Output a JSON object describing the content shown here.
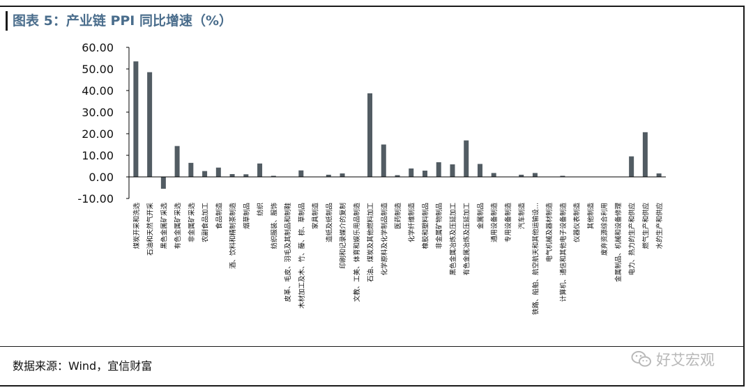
{
  "title": "图表 5：产业链 PPI 同比增速（%）",
  "source": "数据来源：Wind，宜信财富",
  "watermark": {
    "text": "好艾宏观",
    "icon": "wechat-icon"
  },
  "colors": {
    "bar": "#525c63",
    "title": "#4a6d8c",
    "axis": "#000000",
    "watermark": "#b8b8b8"
  },
  "chart_data": {
    "type": "bar",
    "title": "图表 5：产业链 PPI 同比增速（%）",
    "xlabel": "",
    "ylabel": "",
    "ylim": [
      -10,
      60
    ],
    "yticks": [
      -10,
      0,
      10,
      20,
      30,
      40,
      50,
      60
    ],
    "ytick_labels": [
      "-10.00",
      "0.00",
      "10.00",
      "20.00",
      "30.00",
      "40.00",
      "50.00",
      "60.00"
    ],
    "grid": false,
    "legend": "none",
    "categories": [
      "煤炭开采和洗选",
      "石油和天然气开采",
      "黑色金属矿采选",
      "有色金属矿采选",
      "非金属矿采选",
      "农副食品加工",
      "食品制造",
      "酒、饮料和精制茶制造",
      "烟草制品",
      "纺织",
      "纺织服装、服饰",
      "皮革、毛皮、羽毛及其制品和制鞋",
      "木材加工及木、竹、藤、棕、草制品",
      "家具制造",
      "造纸及纸制品",
      "印刷和记录媒介的复制",
      "文教、工美、体育和娱乐用品制造",
      "石油、煤炭及其他燃料加工",
      "化学原料及化学制品制造",
      "医药制造",
      "化学纤维制造",
      "橡胶和塑料制品",
      "非金属矿物制品",
      "黑色金属冶炼及压延加工",
      "有色金属冶炼及压延加工",
      "金属制品",
      "通用设备制造",
      "专用设备制造",
      "汽车制造",
      "铁路、船舶、航空航天和其他运输设...",
      "电气机械及器材制造",
      "计算机、通信和其他电子设备制造",
      "仪器仪表制造",
      "其他制造",
      "废弃资源综合利用",
      "金属制品、机械和设备修理",
      "电力、热力的生产和供应",
      "燃气生产和供应",
      "水的生产和供应"
    ],
    "values": [
      53.5,
      48.5,
      -5.5,
      14.3,
      6.5,
      2.7,
      4.3,
      1.3,
      1.2,
      6.2,
      0.5,
      0.0,
      3.0,
      0.0,
      1.0,
      1.6,
      0.0,
      38.7,
      15.0,
      0.8,
      3.9,
      2.9,
      6.8,
      5.8,
      16.9,
      6.0,
      1.8,
      0.0,
      1.0,
      1.8,
      0.0,
      0.5,
      0.0,
      0.0,
      0.0,
      0.0,
      9.5,
      20.7,
      1.6
    ]
  }
}
